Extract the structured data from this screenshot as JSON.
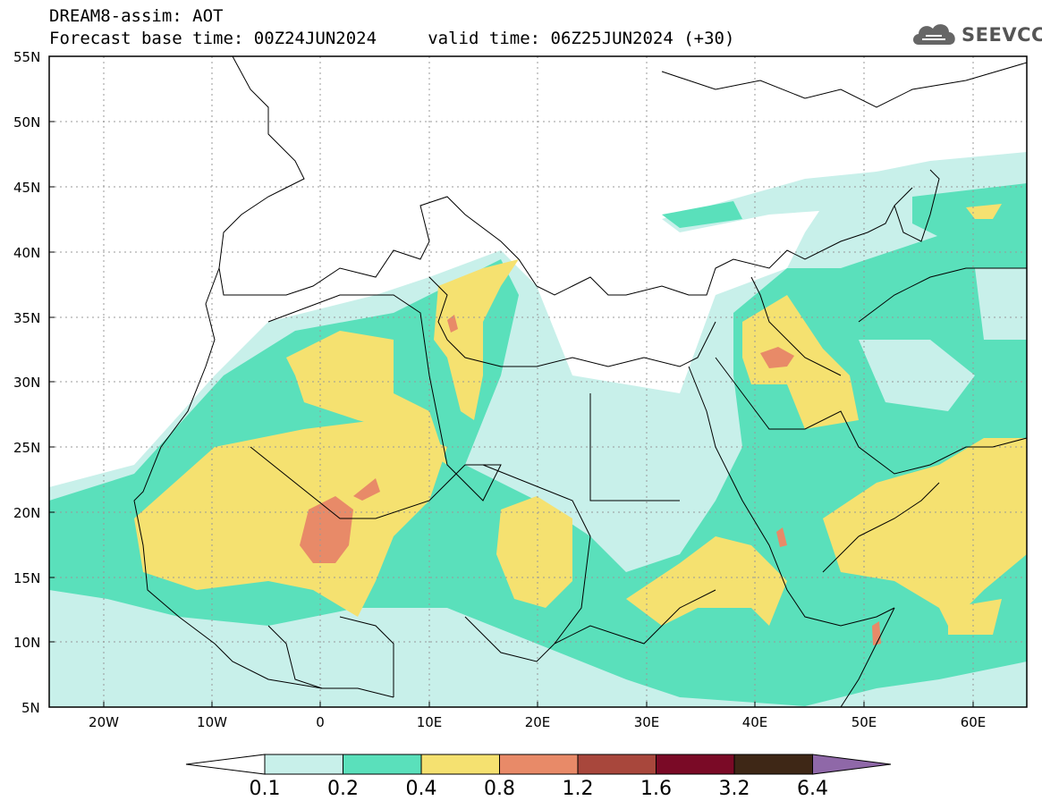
{
  "header": {
    "line1": "DREAM8-assim: AOT",
    "line2": "Forecast base time: 00Z24JUN2024     valid time: 06Z25JUN2024 (+30)"
  },
  "logo": {
    "text": "SEEVCCC",
    "icon": "cloud-icon"
  },
  "map": {
    "lon_range": [
      -25,
      65
    ],
    "lat_range": [
      5,
      55
    ],
    "y_ticks": [
      "55N",
      "50N",
      "45N",
      "40N",
      "35N",
      "30N",
      "25N",
      "20N",
      "15N",
      "10N",
      "5N"
    ],
    "x_ticks": [
      "20W",
      "10W",
      "0",
      "10E",
      "20E",
      "30E",
      "40E",
      "50E",
      "60E"
    ],
    "grid": true
  },
  "colorbar": {
    "labels": [
      "0.1",
      "0.2",
      "0.4",
      "0.8",
      "1.2",
      "1.6",
      "3.2",
      "6.4"
    ],
    "colors": [
      "#ffffff",
      "#c8f0ea",
      "#5ae0bb",
      "#f5e170",
      "#e88a68",
      "#a8473c",
      "#7a0a26",
      "#3e2716",
      "#8f68a8"
    ]
  }
}
